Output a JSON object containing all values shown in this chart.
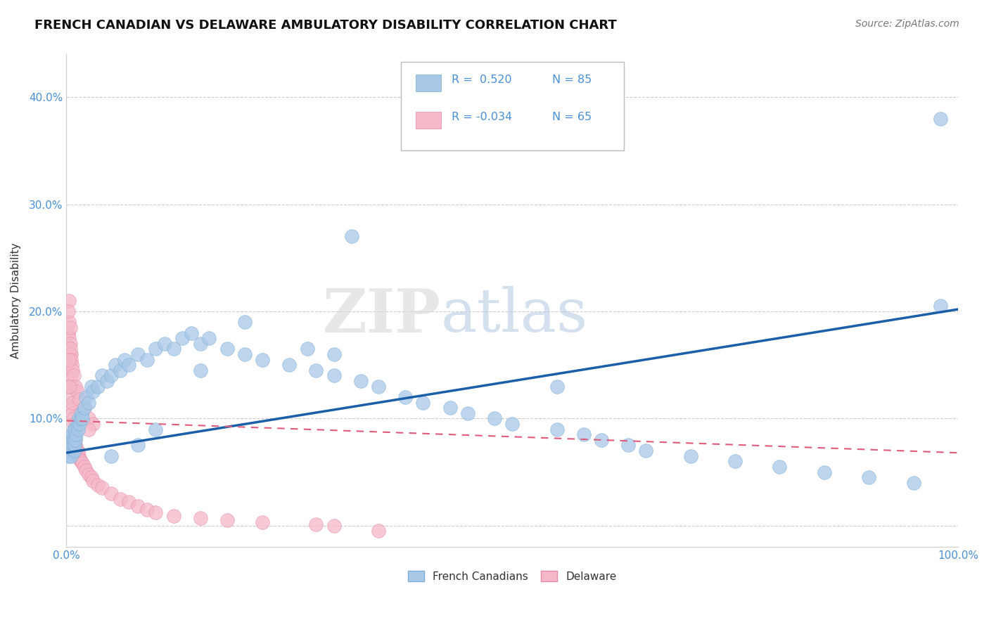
{
  "title": "FRENCH CANADIAN VS DELAWARE AMBULATORY DISABILITY CORRELATION CHART",
  "source": "Source: ZipAtlas.com",
  "ylabel": "Ambulatory Disability",
  "xlim": [
    0.0,
    1.0
  ],
  "ylim": [
    -0.02,
    0.44
  ],
  "xticks": [
    0.0,
    0.25,
    0.5,
    0.75,
    1.0
  ],
  "xtick_labels": [
    "0.0%",
    "",
    "",
    "",
    "100.0%"
  ],
  "yticks": [
    0.0,
    0.1,
    0.2,
    0.3,
    0.4
  ],
  "ytick_labels": [
    "",
    "10.0%",
    "20.0%",
    "30.0%",
    "40.0%"
  ],
  "grid_color": "#cccccc",
  "background_color": "#ffffff",
  "watermark_zip": "ZIP",
  "watermark_atlas": "atlas",
  "series1_color": "#a8c8e8",
  "series1_edge": "#7aafd4",
  "series2_color": "#f4b8c8",
  "series2_edge": "#e88aa8",
  "line1_color": "#1a5fa8",
  "line2_color": "#e05a7a",
  "title_color": "#111111",
  "axis_label_color": "#333333",
  "tick_color": "#4a90d9",
  "source_color": "#777777",
  "legend_color": "#4a90d9",
  "legend_R1": "R =  0.520",
  "legend_N1": "N = 85",
  "legend_R2": "R = -0.034",
  "legend_N2": "N = 65",
  "fc_x": [
    0.001,
    0.002,
    0.002,
    0.003,
    0.003,
    0.004,
    0.004,
    0.005,
    0.005,
    0.006,
    0.006,
    0.007,
    0.007,
    0.008,
    0.008,
    0.009,
    0.009,
    0.01,
    0.01,
    0.011,
    0.012,
    0.013,
    0.014,
    0.015,
    0.016,
    0.017,
    0.018,
    0.02,
    0.022,
    0.025,
    0.028,
    0.03,
    0.035,
    0.04,
    0.045,
    0.05,
    0.055,
    0.06,
    0.065,
    0.07,
    0.08,
    0.09,
    0.1,
    0.11,
    0.12,
    0.13,
    0.14,
    0.15,
    0.16,
    0.18,
    0.2,
    0.22,
    0.25,
    0.28,
    0.3,
    0.33,
    0.35,
    0.38,
    0.4,
    0.43,
    0.45,
    0.48,
    0.5,
    0.55,
    0.58,
    0.6,
    0.63,
    0.65,
    0.7,
    0.75,
    0.8,
    0.85,
    0.9,
    0.95,
    0.98,
    0.32,
    0.27,
    0.2,
    0.15,
    0.1,
    0.08,
    0.05,
    0.3,
    0.55,
    0.98
  ],
  "fc_y": [
    0.07,
    0.075,
    0.065,
    0.08,
    0.072,
    0.068,
    0.076,
    0.07,
    0.065,
    0.08,
    0.072,
    0.085,
    0.075,
    0.09,
    0.08,
    0.07,
    0.075,
    0.09,
    0.08,
    0.085,
    0.095,
    0.09,
    0.1,
    0.095,
    0.1,
    0.105,
    0.1,
    0.11,
    0.12,
    0.115,
    0.13,
    0.125,
    0.13,
    0.14,
    0.135,
    0.14,
    0.15,
    0.145,
    0.155,
    0.15,
    0.16,
    0.155,
    0.165,
    0.17,
    0.165,
    0.175,
    0.18,
    0.17,
    0.175,
    0.165,
    0.16,
    0.155,
    0.15,
    0.145,
    0.14,
    0.135,
    0.13,
    0.12,
    0.115,
    0.11,
    0.105,
    0.1,
    0.095,
    0.09,
    0.085,
    0.08,
    0.075,
    0.07,
    0.065,
    0.06,
    0.055,
    0.05,
    0.045,
    0.04,
    0.205,
    0.27,
    0.165,
    0.19,
    0.145,
    0.09,
    0.075,
    0.065,
    0.16,
    0.13,
    0.38
  ],
  "de_x": [
    0.001,
    0.002,
    0.002,
    0.003,
    0.003,
    0.004,
    0.004,
    0.005,
    0.005,
    0.005,
    0.006,
    0.006,
    0.007,
    0.007,
    0.008,
    0.008,
    0.009,
    0.009,
    0.01,
    0.01,
    0.011,
    0.012,
    0.013,
    0.014,
    0.015,
    0.016,
    0.018,
    0.02,
    0.022,
    0.025,
    0.028,
    0.03,
    0.035,
    0.04,
    0.05,
    0.06,
    0.07,
    0.08,
    0.09,
    0.1,
    0.12,
    0.15,
    0.18,
    0.22,
    0.28,
    0.3,
    0.35,
    0.003,
    0.004,
    0.005,
    0.006,
    0.007,
    0.008,
    0.01,
    0.012,
    0.015,
    0.02,
    0.025,
    0.03,
    0.003,
    0.002,
    0.004,
    0.025,
    0.003,
    0.006
  ],
  "de_y": [
    0.13,
    0.18,
    0.165,
    0.19,
    0.175,
    0.16,
    0.17,
    0.12,
    0.14,
    0.16,
    0.11,
    0.13,
    0.105,
    0.115,
    0.1,
    0.095,
    0.085,
    0.09,
    0.08,
    0.075,
    0.072,
    0.07,
    0.068,
    0.065,
    0.062,
    0.06,
    0.058,
    0.055,
    0.052,
    0.048,
    0.045,
    0.042,
    0.038,
    0.035,
    0.03,
    0.025,
    0.022,
    0.018,
    0.015,
    0.012,
    0.009,
    0.007,
    0.005,
    0.003,
    0.001,
    0.0,
    -0.005,
    0.21,
    0.165,
    0.155,
    0.15,
    0.145,
    0.14,
    0.13,
    0.125,
    0.118,
    0.11,
    0.1,
    0.095,
    0.155,
    0.2,
    0.185,
    0.09,
    0.13,
    0.075
  ],
  "line1_x0": 0.0,
  "line1_y0": 0.068,
  "line1_x1": 1.0,
  "line1_y1": 0.202,
  "line2_x0": 0.0,
  "line2_y0": 0.098,
  "line2_x1": 1.0,
  "line2_y1": 0.068
}
